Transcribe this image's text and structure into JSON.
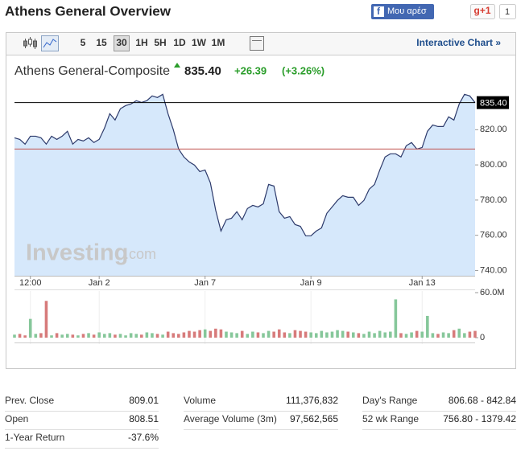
{
  "header": {
    "title": "Athens General Overview",
    "like": "Μου αρέσ",
    "gplus": "g+1",
    "gplus_count": "1"
  },
  "toolbar": {
    "intervals": [
      "5",
      "15",
      "30",
      "1H",
      "5H",
      "1D",
      "1W",
      "1M"
    ],
    "interactive": "Interactive Chart »"
  },
  "chart_data": {
    "type": "line",
    "title": "Athens General-Composite",
    "price": "835.40",
    "change": "+26.39",
    "change_pct": "(+3.26%)",
    "color": "#2d3a6b",
    "fill": "#d6e8fb",
    "categories": [
      null,
      null,
      null,
      "12:00",
      null,
      null,
      null,
      null,
      null,
      null,
      null,
      null,
      null,
      null,
      null,
      null,
      "Jan 2",
      null,
      null,
      null,
      null,
      null,
      null,
      null,
      null,
      null,
      null,
      null,
      null,
      null,
      null,
      null,
      null,
      null,
      null,
      null,
      "Jan 7",
      null,
      null,
      null,
      null,
      null,
      null,
      null,
      null,
      null,
      null,
      null,
      null,
      null,
      null,
      null,
      null,
      null,
      null,
      null,
      "Jan 9",
      null,
      null,
      null,
      null,
      null,
      null,
      null,
      null,
      null,
      null,
      null,
      null,
      null,
      null,
      null,
      null,
      null,
      null,
      null,
      null,
      "Jan 13",
      null,
      null,
      null,
      null,
      null,
      null,
      null,
      null,
      null,
      null
    ],
    "values": [
      815.4,
      814.5,
      811.8,
      816.3,
      816.3,
      815.4,
      811.8,
      816.3,
      814.5,
      816.3,
      819.1,
      811.8,
      814.5,
      813.6,
      815.4,
      812.7,
      814.5,
      820.9,
      829.1,
      825.5,
      831.9,
      833.7,
      834.6,
      836.5,
      835.5,
      836.5,
      839.2,
      838.3,
      840.1,
      829.1,
      820.0,
      809.0,
      804.5,
      801.7,
      799.9,
      796.2,
      797.1,
      789.8,
      774.3,
      762.4,
      768.8,
      769.7,
      773.4,
      768.8,
      775.2,
      777.0,
      776.1,
      777.9,
      788.9,
      788.0,
      773.4,
      769.7,
      770.6,
      766.1,
      765.1,
      759.7,
      759.7,
      762.4,
      764.2,
      772.5,
      776.1,
      779.8,
      782.5,
      781.6,
      781.6,
      777.0,
      779.8,
      786.2,
      788.9,
      797.1,
      804.5,
      806.3,
      806.3,
      804.5,
      810.9,
      812.7,
      809.0,
      809.9,
      819.1,
      822.7,
      821.8,
      821.8,
      827.3,
      825.5,
      834.6,
      840.1,
      839.2,
      835.4
    ],
    "ylim": [
      737,
      843
    ],
    "yticks": [
      {
        "value": 740,
        "label": "740.00"
      },
      {
        "value": 760,
        "label": "760.00"
      },
      {
        "value": 780,
        "label": "780.00"
      },
      {
        "value": 800,
        "label": "800.00"
      },
      {
        "value": 820,
        "label": "820.00"
      }
    ],
    "reference_lines": [
      {
        "value": 835.4,
        "color": "#000000"
      },
      {
        "value": 809.01,
        "color": "#c0504d"
      }
    ],
    "watermark": [
      "Investing",
      ".com"
    ],
    "volume": {
      "values": [
        4,
        5,
        3,
        25,
        5,
        6,
        49,
        3,
        6,
        4,
        5,
        4,
        3,
        5,
        6,
        4,
        7,
        5,
        6,
        4,
        5,
        3,
        6,
        5,
        4,
        7,
        6,
        5,
        4,
        8,
        6,
        5,
        7,
        9,
        8,
        10,
        11,
        9,
        12,
        11,
        8,
        7,
        6,
        9,
        5,
        8,
        7,
        6,
        9,
        8,
        11,
        7,
        6,
        10,
        9,
        8,
        7,
        6,
        9,
        7,
        8,
        10,
        9,
        8,
        7,
        6,
        5,
        8,
        6,
        9,
        7,
        8,
        51,
        6,
        5,
        7,
        9,
        8,
        29,
        6,
        5,
        7,
        6,
        10,
        12,
        6,
        8,
        9
      ],
      "ylim": [
        0,
        60
      ],
      "yticks": [
        0,
        {
          "value": 60,
          "label": "60.0M"
        }
      ],
      "up_color": "#86c79a",
      "down_color": "#d77b7b"
    }
  },
  "stats": [
    [
      [
        "Prev. Close",
        "809.01"
      ],
      [
        "Volume",
        "111,376,832"
      ],
      [
        "Day's Range",
        "806.68 - 842.84"
      ]
    ],
    [
      [
        "Open",
        "808.51"
      ],
      [
        "Average Volume (3m)",
        "97,562,565"
      ],
      [
        "52 wk Range",
        "756.80 - 1379.42"
      ]
    ],
    [
      [
        "1-Year Return",
        "-37.6%"
      ]
    ]
  ]
}
